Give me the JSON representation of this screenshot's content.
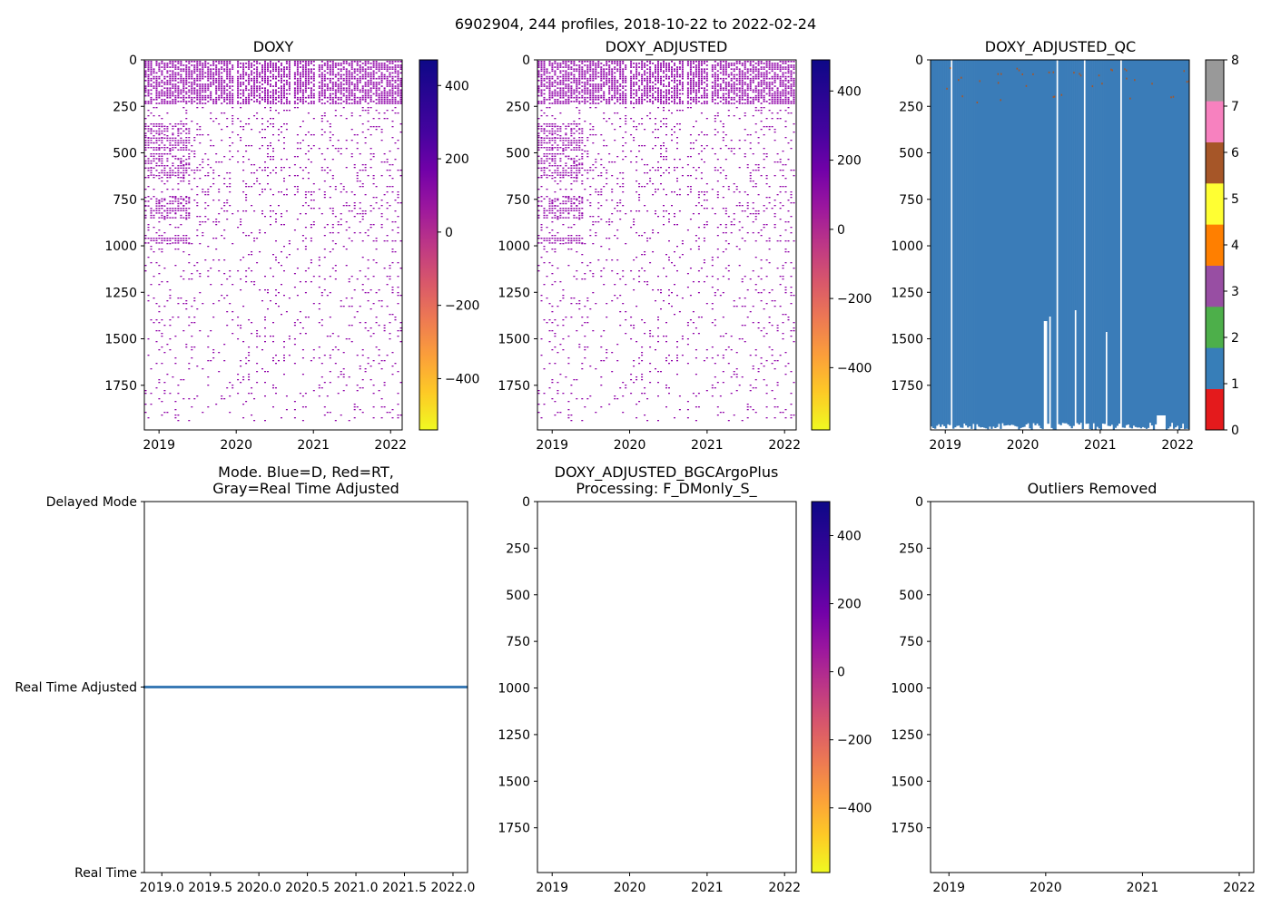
{
  "figure": {
    "title": "6902904, 244 profiles, 2018-10-22 to 2022-02-24"
  },
  "colors": {
    "profile_dots": "#8f00a8",
    "mode_line": "#3a7ab5",
    "qc_fill": "#3a7cb8",
    "axis": "#000000"
  },
  "chart_data": [
    {
      "id": "doxy",
      "type": "heatmap",
      "title": "DOXY",
      "x_ticks": [
        "2019",
        "2020",
        "2021",
        "2022"
      ],
      "x_tick_values": [
        2019,
        2020,
        2021,
        2022
      ],
      "xlim": [
        2018.81,
        2022.15
      ],
      "y_ticks": [
        "0",
        "250",
        "500",
        "750",
        "1000",
        "1250",
        "1500",
        "1750"
      ],
      "y_tick_values": [
        0,
        250,
        500,
        750,
        1000,
        1250,
        1500,
        1750
      ],
      "ylim": [
        1990,
        0
      ],
      "colorbar": {
        "colormap": "plasma_r",
        "ticks": [
          "400",
          "200",
          "0",
          "−200",
          "−400"
        ],
        "tick_values": [
          400,
          200,
          0,
          -200,
          -400
        ],
        "range": [
          -540,
          470
        ]
      }
    },
    {
      "id": "doxy-adjusted",
      "type": "heatmap",
      "title": "DOXY_ADJUSTED",
      "x_ticks": [
        "2019",
        "2020",
        "2021",
        "2022"
      ],
      "x_tick_values": [
        2019,
        2020,
        2021,
        2022
      ],
      "xlim": [
        2018.81,
        2022.15
      ],
      "y_ticks": [
        "0",
        "250",
        "500",
        "750",
        "1000",
        "1250",
        "1500",
        "1750"
      ],
      "y_tick_values": [
        0,
        250,
        500,
        750,
        1000,
        1250,
        1500,
        1750
      ],
      "ylim": [
        1990,
        0
      ],
      "colorbar": {
        "colormap": "plasma_r",
        "ticks": [
          "400",
          "200",
          "0",
          "−200",
          "−400"
        ],
        "tick_values": [
          400,
          200,
          0,
          -200,
          -400
        ],
        "range": [
          -580,
          490
        ]
      }
    },
    {
      "id": "doxy-adjusted-qc",
      "type": "heatmap",
      "title": "DOXY_ADJUSTED_QC",
      "x_ticks": [
        "2019",
        "2020",
        "2021",
        "2022"
      ],
      "x_tick_values": [
        2019,
        2020,
        2021,
        2022
      ],
      "xlim": [
        2018.81,
        2022.15
      ],
      "y_ticks": [
        "0",
        "250",
        "500",
        "750",
        "1000",
        "1250",
        "1500",
        "1750"
      ],
      "y_tick_values": [
        0,
        250,
        500,
        750,
        1000,
        1250,
        1500,
        1750
      ],
      "ylim": [
        1990,
        0
      ],
      "dominant_qc_flag": 1,
      "colorbar": {
        "colormap": "qc_categorical",
        "ticks": [
          "8",
          "7",
          "6",
          "5",
          "4",
          "3",
          "2",
          "1",
          "0"
        ],
        "tick_values": [
          8,
          7,
          6,
          5,
          4,
          3,
          2,
          1,
          0
        ],
        "range": [
          0,
          8
        ],
        "category_colors": [
          "#e41a1c",
          "#377eb8",
          "#4daf4a",
          "#984ea3",
          "#ff7f00",
          "#ffff33",
          "#a65628",
          "#f781bf",
          "#999999"
        ]
      }
    },
    {
      "id": "mode",
      "type": "line",
      "title_lines": [
        "Mode. Blue=D, Red=RT,",
        "Gray=Real Time Adjusted"
      ],
      "x_ticks": [
        "2019.0",
        "2019.5",
        "2020.0",
        "2020.5",
        "2021.0",
        "2021.5",
        "2022.0"
      ],
      "x_tick_values": [
        2019.0,
        2019.5,
        2020.0,
        2020.5,
        2021.0,
        2021.5,
        2022.0
      ],
      "xlim": [
        2018.82,
        2022.15
      ],
      "y_ticks": [
        "Delayed Mode",
        "Real Time Adjusted",
        "Real Time"
      ],
      "y_tick_values": [
        2,
        1,
        0
      ],
      "ylim": [
        0,
        2
      ],
      "series": [
        {
          "name": "Real Time Adjusted",
          "x": [
            2018.81,
            2022.15
          ],
          "y": [
            1,
            1
          ]
        }
      ]
    },
    {
      "id": "bgcargoplus",
      "type": "heatmap",
      "title_lines": [
        "DOXY_ADJUSTED_BGCArgoPlus",
        "Processing: F_DMonly_S_"
      ],
      "x_ticks": [
        "2019",
        "2020",
        "2021",
        "2022"
      ],
      "x_tick_values": [
        2019,
        2020,
        2021,
        2022
      ],
      "xlim": [
        2018.81,
        2022.15
      ],
      "y_ticks": [
        "0",
        "250",
        "500",
        "750",
        "1000",
        "1250",
        "1500",
        "1750"
      ],
      "y_tick_values": [
        0,
        250,
        500,
        750,
        1000,
        1250,
        1500,
        1750
      ],
      "ylim": [
        1990,
        0
      ],
      "colorbar": {
        "colormap": "plasma_r",
        "ticks": [
          "400",
          "200",
          "0",
          "−200",
          "−400"
        ],
        "tick_values": [
          400,
          200,
          0,
          -200,
          -400
        ],
        "range": [
          -590,
          500
        ]
      }
    },
    {
      "id": "outliers",
      "type": "heatmap",
      "title": "Outliers Removed",
      "x_ticks": [
        "2019",
        "2020",
        "2021",
        "2022"
      ],
      "x_tick_values": [
        2019,
        2020,
        2021,
        2022
      ],
      "xlim": [
        2018.81,
        2022.15
      ],
      "y_ticks": [
        "0",
        "250",
        "500",
        "750",
        "1000",
        "1250",
        "1500",
        "1750"
      ],
      "y_tick_values": [
        0,
        250,
        500,
        750,
        1000,
        1250,
        1500,
        1750
      ],
      "ylim": [
        1990,
        0
      ]
    }
  ]
}
